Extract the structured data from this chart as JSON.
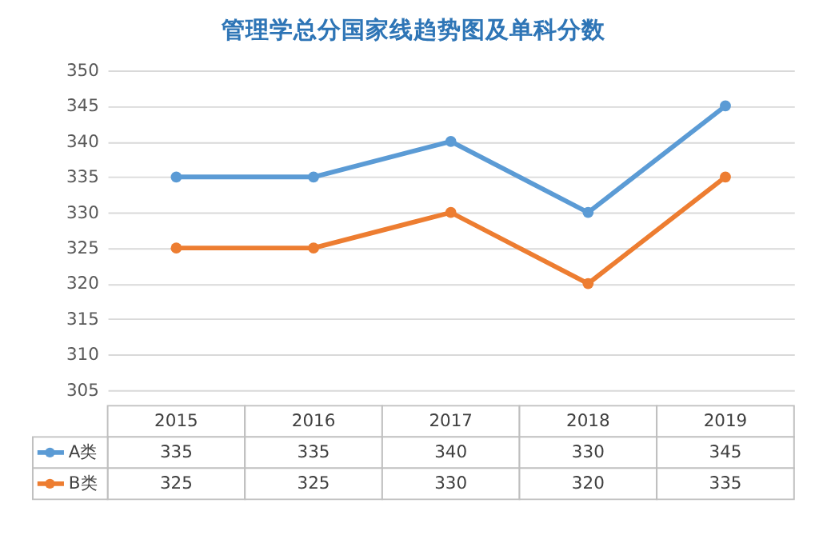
{
  "chart_data": {
    "type": "line",
    "title": "管理学总分国家线趋势图及单科分数",
    "categories": [
      "2015",
      "2016",
      "2017",
      "2018",
      "2019"
    ],
    "series": [
      {
        "name": "A类",
        "color": "#5b9bd5",
        "values": [
          335,
          335,
          340,
          330,
          345
        ]
      },
      {
        "name": "B类",
        "color": "#ed7d31",
        "values": [
          325,
          325,
          330,
          320,
          335
        ]
      }
    ],
    "ylim": [
      305,
      350
    ],
    "yticks": [
      305,
      310,
      315,
      320,
      325,
      330,
      335,
      340,
      345,
      350
    ],
    "grid": "y",
    "legend": "bottom",
    "marker": "circle",
    "line_style": "solid",
    "data_labels": true
  }
}
